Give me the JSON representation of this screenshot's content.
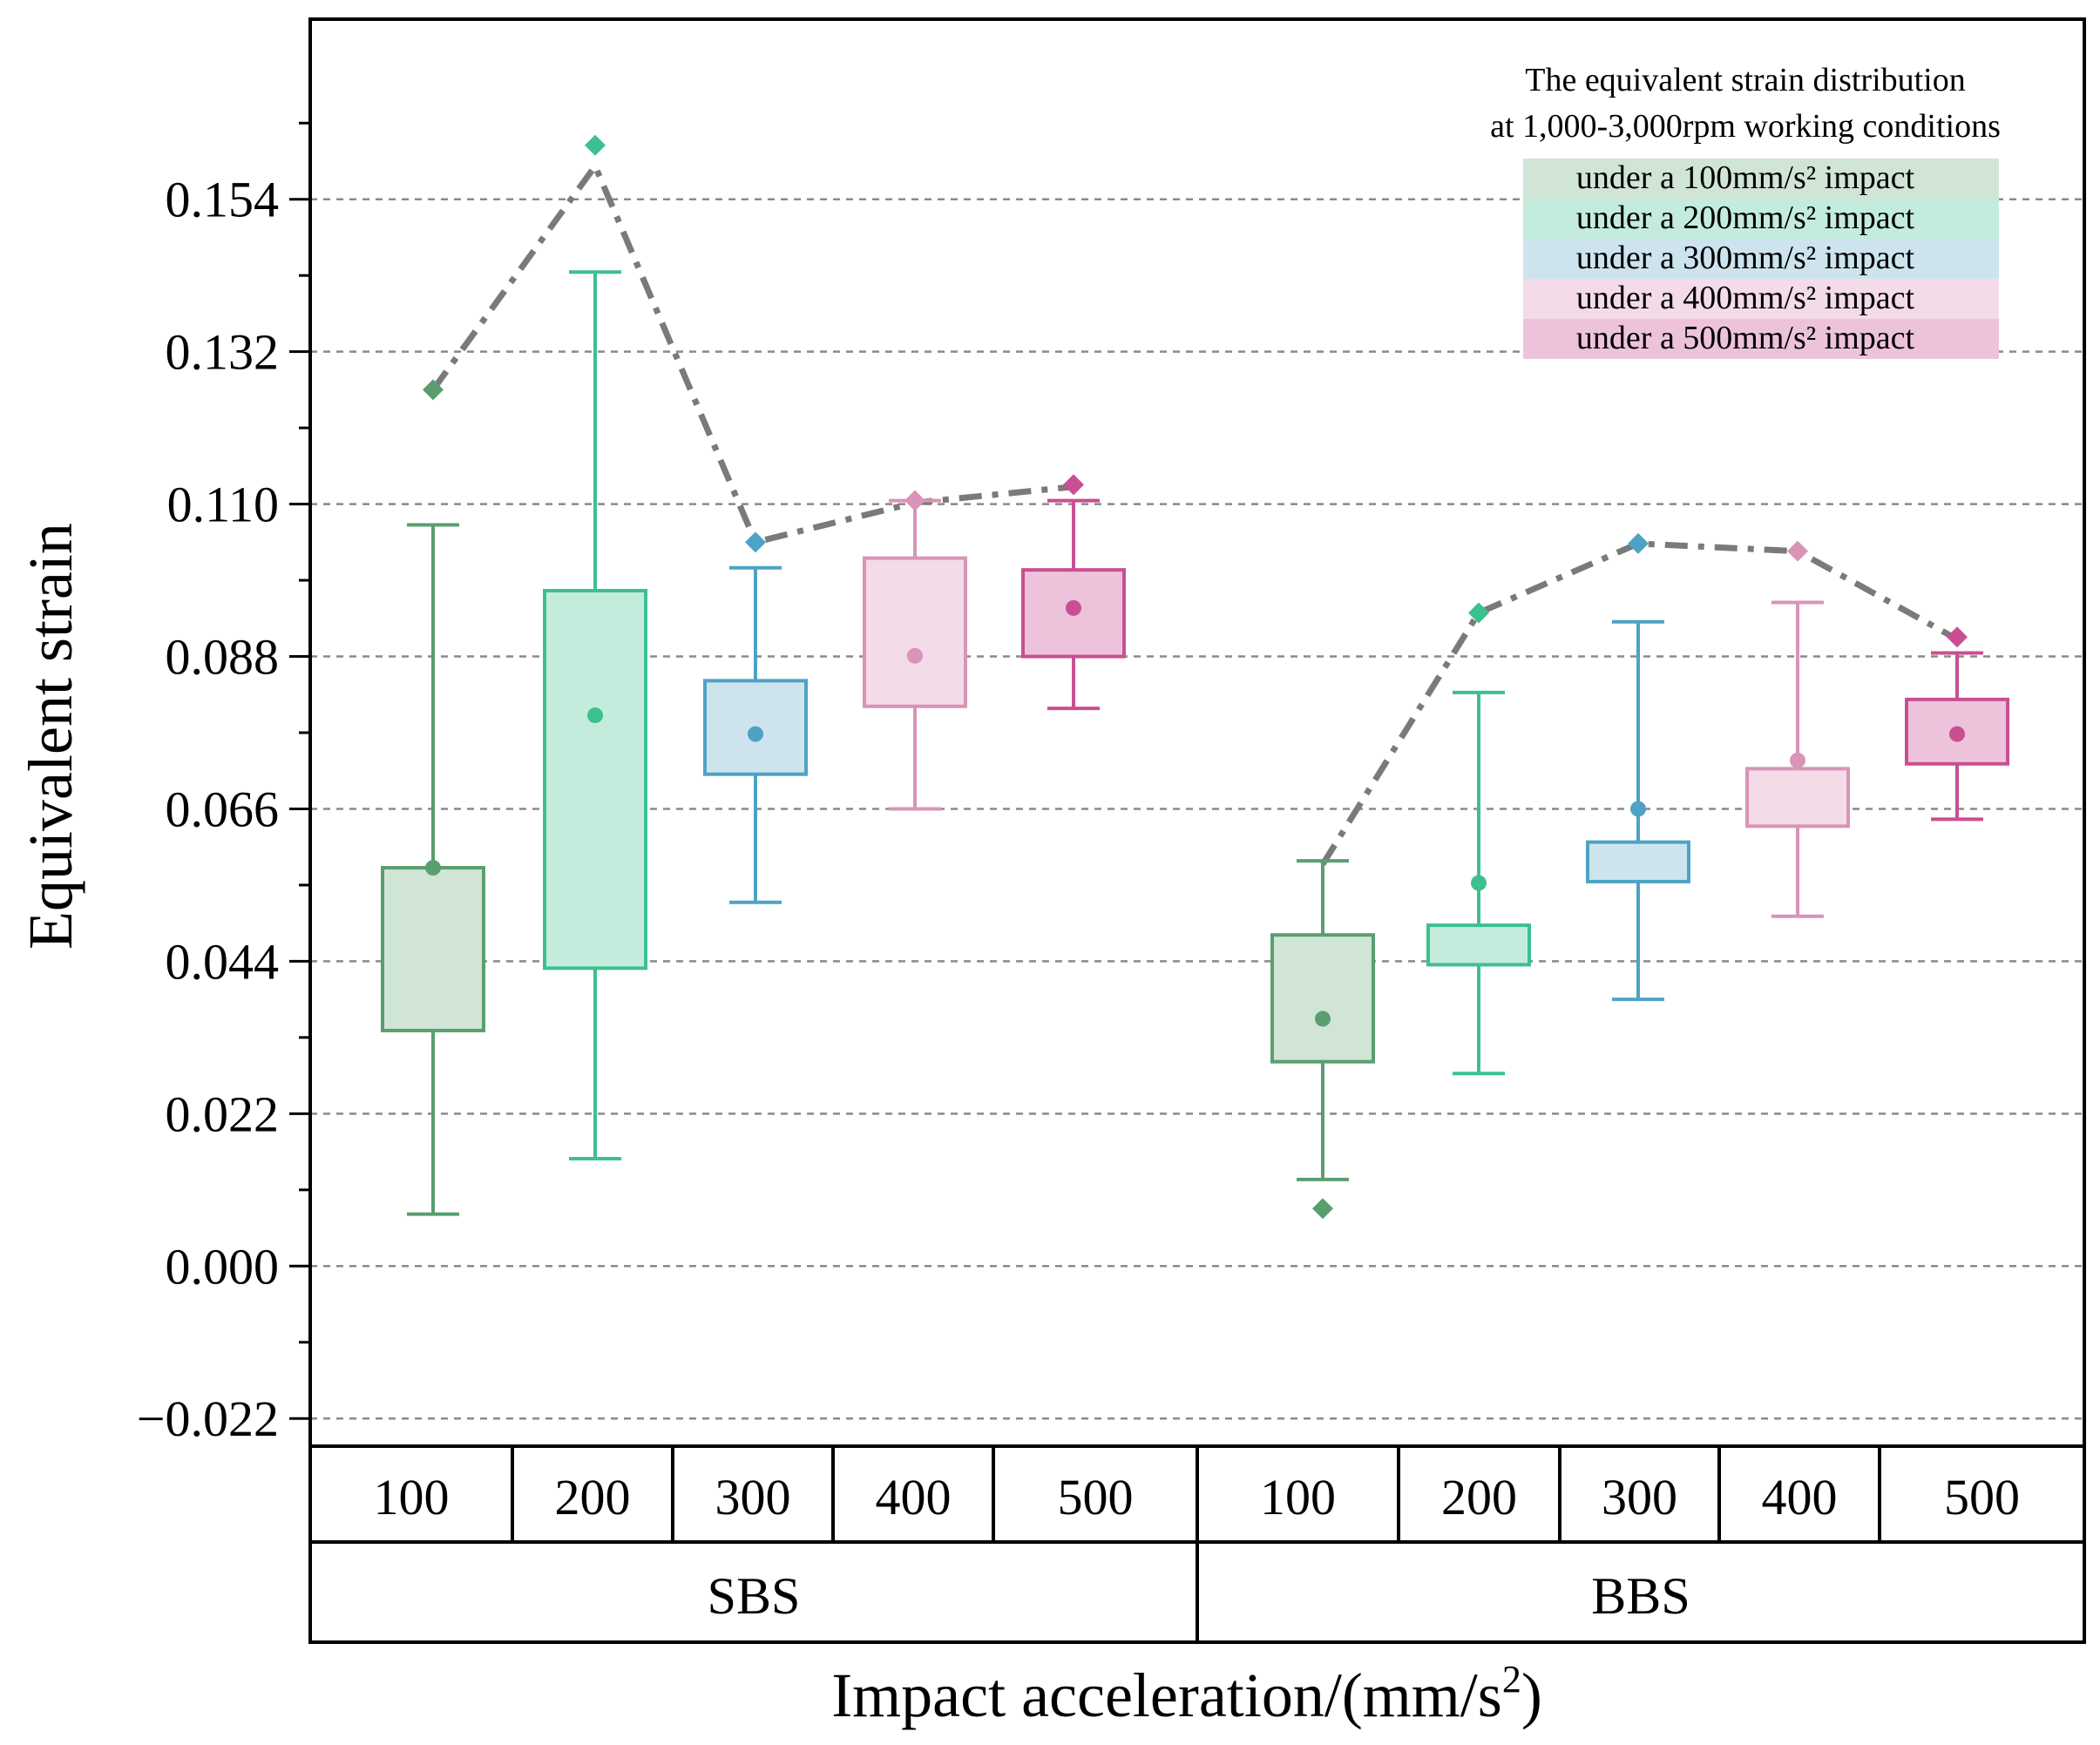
{
  "chart_data": {
    "type": "box",
    "title": "",
    "ylabel": "Equivalent strain",
    "xlabel": "Impact acceleration/(mm/s",
    "xlabel_superscript": "2",
    "xlabel_suffix": ")",
    "ylim": [
      -0.026,
      0.18
    ],
    "yticks": [
      -0.022,
      0.0,
      0.022,
      0.044,
      0.066,
      0.088,
      0.11,
      0.132,
      0.154
    ],
    "ytick_labels": [
      "−0.022",
      "0.000",
      "0.022",
      "0.044",
      "0.066",
      "0.088",
      "0.110",
      "0.132",
      "0.154"
    ],
    "grid": true,
    "legend": {
      "position": "top-right",
      "title_line1": "The equivalent strain distribution",
      "title_line2": "at 1,000-3,000rpm working conditions",
      "entries": [
        {
          "label": "under a 100mm/s² impact",
          "color": "#5a9e6f"
        },
        {
          "label": "under a 200mm/s² impact",
          "color": "#3cc08f"
        },
        {
          "label": "under a 300mm/s² impact",
          "color": "#4ea3c4"
        },
        {
          "label": "under a 400mm/s² impact",
          "color": "#d994b8"
        },
        {
          "label": "under a 500mm/s² impact",
          "color": "#c94f92"
        }
      ]
    },
    "groups": [
      {
        "name": "SBS",
        "categories": [
          "100",
          "200",
          "300",
          "400",
          "500"
        ]
      },
      {
        "name": "BBS",
        "categories": [
          "100",
          "200",
          "300",
          "400",
          "500"
        ]
      }
    ],
    "series": [
      {
        "group": "SBS",
        "category": "100",
        "color": "#5a9e6f",
        "fill": "#d0e5d6",
        "whisker_low": 0.0075,
        "q1": 0.034,
        "q3": 0.0575,
        "whisker_high": 0.107,
        "mean": 0.0575,
        "max_point": 0.1265
      },
      {
        "group": "SBS",
        "category": "200",
        "color": "#3cc08f",
        "fill": "#c4ecdc",
        "whisker_low": 0.0155,
        "q1": 0.043,
        "q3": 0.0975,
        "whisker_high": 0.1435,
        "mean": 0.0795,
        "max_point": 0.1618
      },
      {
        "group": "SBS",
        "category": "300",
        "color": "#4ea3c4",
        "fill": "#cde4ee",
        "whisker_low": 0.0525,
        "q1": 0.071,
        "q3": 0.0845,
        "whisker_high": 0.1008,
        "mean": 0.0768,
        "max_point": 0.1045
      },
      {
        "group": "SBS",
        "category": "400",
        "color": "#d994b8",
        "fill": "#f3dbe8",
        "whisker_low": 0.066,
        "q1": 0.0808,
        "q3": 0.1022,
        "whisker_high": 0.1105,
        "mean": 0.0881,
        "max_point": 0.1105
      },
      {
        "group": "SBS",
        "category": "500",
        "color": "#c94f92",
        "fill": "#edc3dc",
        "whisker_low": 0.0805,
        "q1": 0.088,
        "q3": 0.1005,
        "whisker_high": 0.1105,
        "mean": 0.095,
        "max_point": 0.1128
      },
      {
        "group": "BBS",
        "category": "100",
        "color": "#5a9e6f",
        "fill": "#d0e5d6",
        "whisker_low": 0.0125,
        "q1": 0.0295,
        "q3": 0.0478,
        "whisker_high": 0.0585,
        "mean": 0.0357,
        "min_point": 0.0083
      },
      {
        "group": "BBS",
        "category": "200",
        "color": "#3cc08f",
        "fill": "#c4ecdc",
        "whisker_low": 0.0278,
        "q1": 0.0435,
        "q3": 0.0492,
        "whisker_high": 0.0828,
        "mean": 0.0553,
        "max_point": 0.0943
      },
      {
        "group": "BBS",
        "category": "300",
        "color": "#4ea3c4",
        "fill": "#cde4ee",
        "whisker_low": 0.0385,
        "q1": 0.0555,
        "q3": 0.0612,
        "whisker_high": 0.093,
        "mean": 0.066,
        "max_point": 0.1043
      },
      {
        "group": "BBS",
        "category": "400",
        "color": "#d994b8",
        "fill": "#f3dbe8",
        "whisker_low": 0.0505,
        "q1": 0.0635,
        "q3": 0.0718,
        "whisker_high": 0.0958,
        "mean": 0.073,
        "max_point": 0.1032
      },
      {
        "group": "BBS",
        "category": "500",
        "color": "#c94f92",
        "fill": "#edc3dc",
        "whisker_low": 0.0645,
        "q1": 0.0725,
        "q3": 0.0818,
        "whisker_high": 0.0885,
        "mean": 0.0768,
        "max_point": 0.0908
      }
    ],
    "trend_lines": [
      {
        "group": "SBS",
        "style": "dash-dot",
        "color": "#7a7a7a",
        "values": [
          0.1265,
          0.1588,
          0.1045,
          0.1102,
          0.1125
        ]
      },
      {
        "group": "BBS",
        "style": "dash-dot",
        "color": "#7a7a7a",
        "values": [
          0.058,
          0.0943,
          0.1043,
          0.1032,
          0.0905
        ]
      }
    ]
  }
}
